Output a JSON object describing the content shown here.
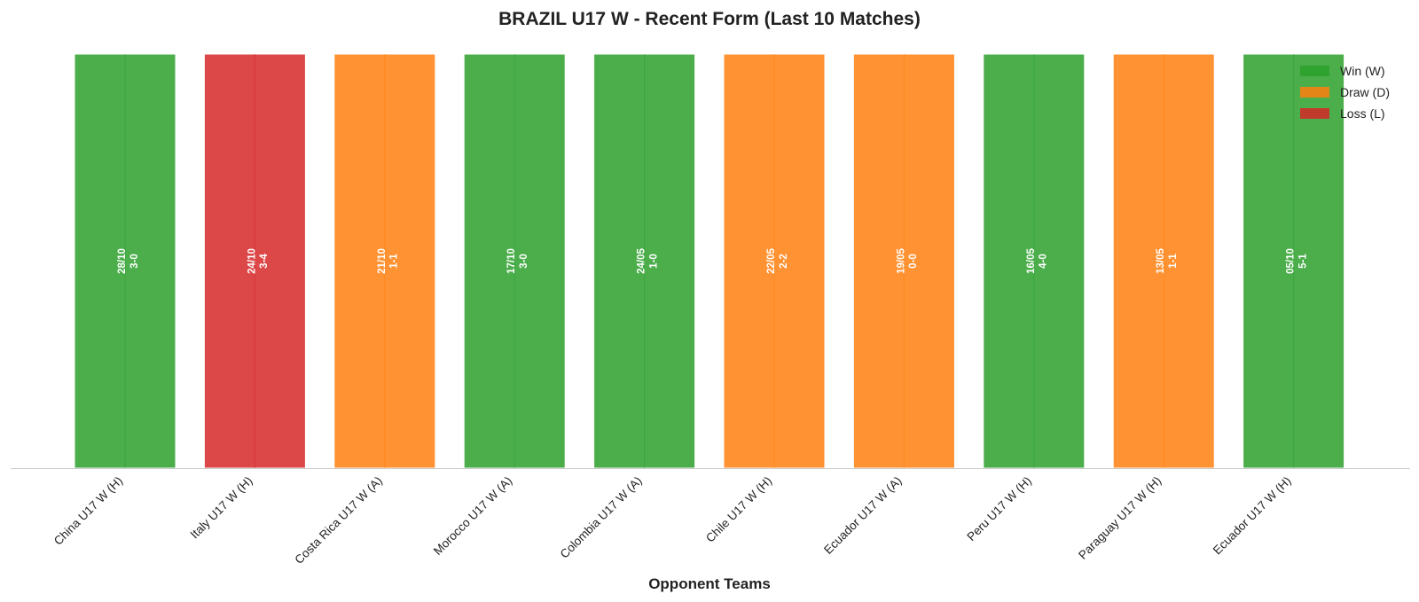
{
  "chart_data": {
    "type": "bar",
    "title": "BRAZIL U17 W - Recent Form (Last 10 Matches)",
    "xlabel": "Opponent Teams",
    "ylabel": "",
    "grid": false,
    "legend_position": "top-right",
    "categories": [
      "China U17 W (H)",
      "Italy U17 W (H)",
      "Costa Rica U17 W (A)",
      "Morocco U17 W (A)",
      "Colombia U17 W (A)",
      "Chile U17 W (H)",
      "Ecuador U17 W (A)",
      "Peru U17 W (H)",
      "Paraguay U17 W (H)",
      "Ecuador U17 W (H)"
    ],
    "values": [
      1,
      1,
      1,
      1,
      1,
      1,
      1,
      1,
      1,
      1
    ],
    "ylim": [
      0,
      1
    ],
    "results": [
      "W",
      "L",
      "D",
      "W",
      "W",
      "D",
      "D",
      "W",
      "D",
      "W"
    ],
    "dates": [
      "28/10",
      "24/10",
      "21/10",
      "17/10",
      "24/05",
      "22/05",
      "19/05",
      "16/05",
      "13/05",
      "05/10"
    ],
    "scores": [
      "3-0",
      "3-4",
      "1-1",
      "3-0",
      "1-0",
      "2-2",
      "0-0",
      "4-0",
      "1-1",
      "5-1"
    ],
    "legend": [
      {
        "key": "W",
        "label": "Win (W)",
        "color": "#2ca02c"
      },
      {
        "key": "D",
        "label": "Draw (D)",
        "color": "#ff7f0e"
      },
      {
        "key": "L",
        "label": "Loss (L)",
        "color": "#d62728"
      }
    ]
  }
}
